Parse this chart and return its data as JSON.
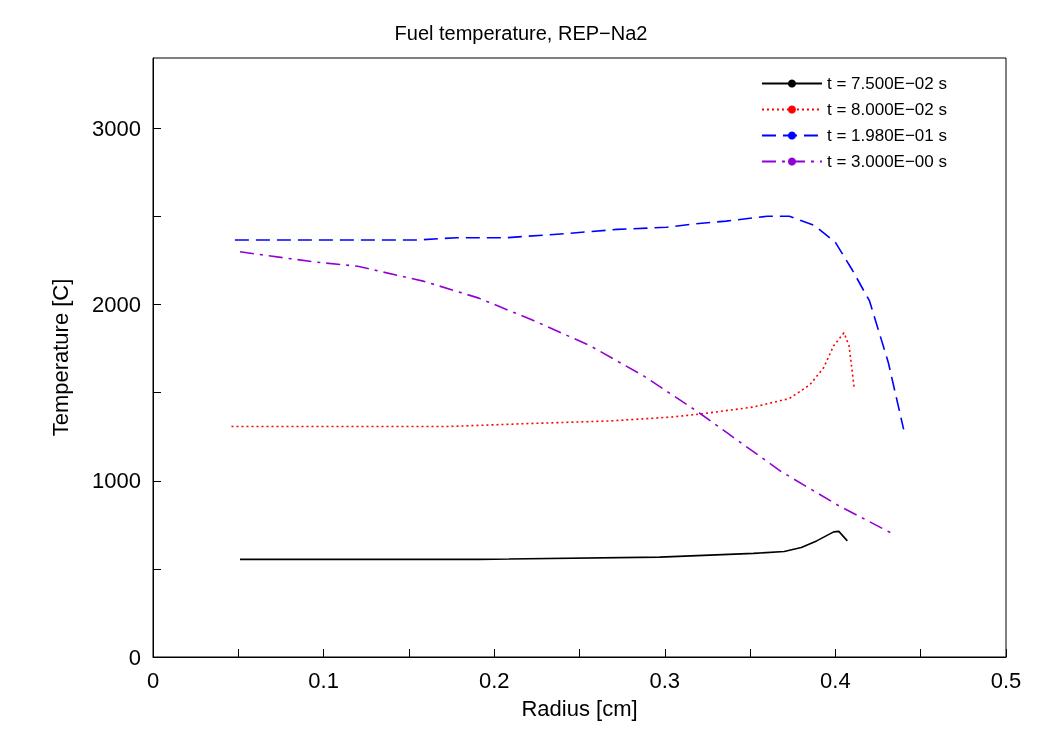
{
  "chart_data": {
    "type": "line",
    "title": "Fuel temperature, REP−Na2",
    "xlabel": "Radius [cm]",
    "ylabel": "Temperature [C]",
    "xlim": [
      0,
      0.5
    ],
    "xticks": [
      0,
      {
        "value": 0.05,
        "label": null
      },
      0.1,
      {
        "value": 0.15,
        "label": null
      },
      0.2,
      {
        "value": 0.25,
        "label": null
      },
      0.3,
      {
        "value": 0.35,
        "label": null
      },
      0.4,
      {
        "value": 0.45,
        "label": null
      },
      0.5
    ],
    "ylim": [
      0,
      3400
    ],
    "yticks": [
      0,
      {
        "value": 500,
        "label": null
      },
      1000,
      {
        "value": 1500,
        "label": null
      },
      2000,
      {
        "value": 2500,
        "label": null
      },
      3000
    ],
    "grid": false,
    "legend": "top right",
    "marker": "none",
    "series": [
      {
        "name": "t = 7.500E−02 s",
        "color": "#000000",
        "line_style": "solid",
        "x": [
          0.051,
          0.191,
          0.297,
          0.352,
          0.37,
          0.38,
          0.389,
          0.399,
          0.402,
          0.407
        ],
        "values": [
          554,
          554,
          567,
          588,
          599,
          621,
          659,
          710,
          713,
          659
        ]
      },
      {
        "name": "t = 8.000E−02 s",
        "color": "#ff0000",
        "line_style": "dotted",
        "x": [
          0.046,
          0.172,
          0.217,
          0.268,
          0.304,
          0.32,
          0.352,
          0.373,
          0.385,
          0.393,
          0.399,
          0.405,
          0.408,
          0.411
        ],
        "values": [
          1308,
          1308,
          1324,
          1340,
          1362,
          1378,
          1419,
          1467,
          1545,
          1640,
          1767,
          1840,
          1767,
          1530
        ]
      },
      {
        "name": "t = 1.980E−01 s",
        "color": "#0000ff",
        "line_style": "dashed",
        "x": [
          0.048,
          0.155,
          0.178,
          0.207,
          0.239,
          0.272,
          0.301,
          0.32,
          0.336,
          0.36,
          0.373,
          0.388,
          0.4,
          0.41,
          0.42,
          0.431,
          0.44
        ],
        "values": [
          2367,
          2367,
          2380,
          2380,
          2401,
          2427,
          2439,
          2461,
          2474,
          2502,
          2502,
          2448,
          2353,
          2195,
          2021,
          1672,
          1292
        ]
      },
      {
        "name": "t = 3.000E−00 s",
        "color": "#9400d3",
        "line_style": "dashdot",
        "x": [
          0.051,
          0.094,
          0.12,
          0.159,
          0.191,
          0.223,
          0.256,
          0.288,
          0.32,
          0.336,
          0.368,
          0.401,
          0.434
        ],
        "values": [
          2300,
          2243,
          2218,
          2132,
          2037,
          1910,
          1768,
          1593,
          1387,
          1276,
          1054,
          864,
          697
        ]
      }
    ]
  }
}
